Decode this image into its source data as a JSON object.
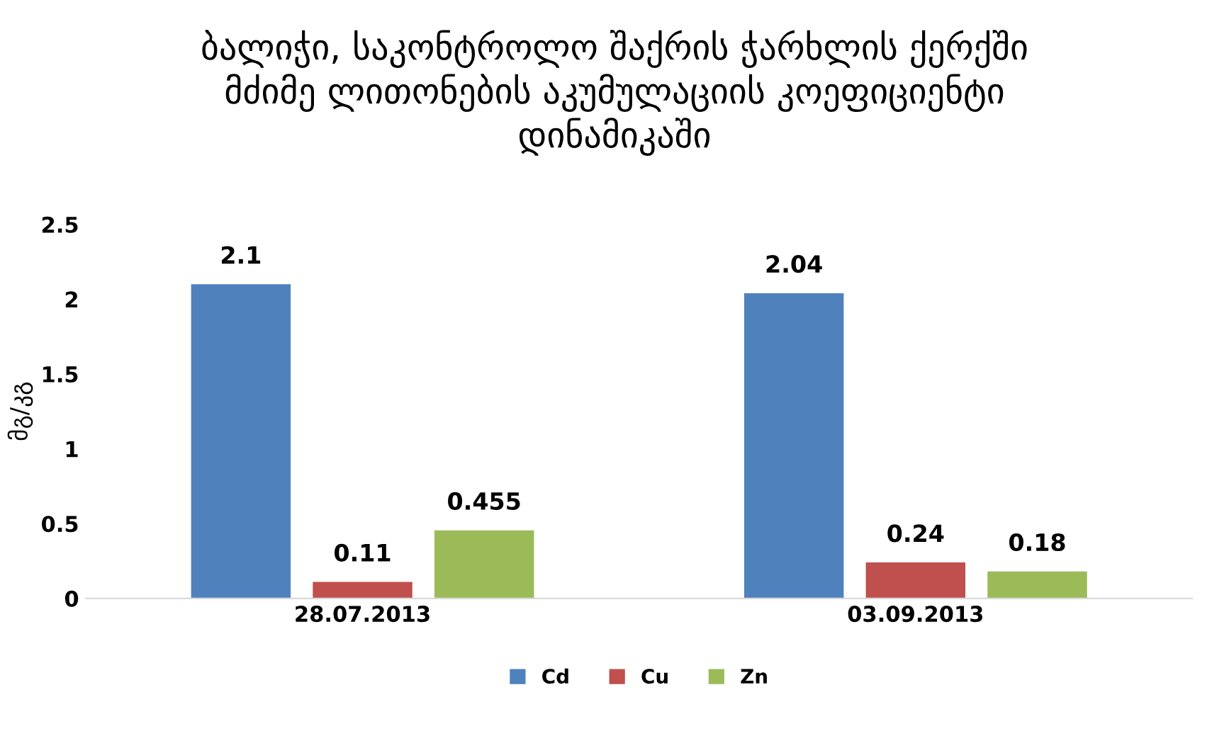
{
  "chart_data": {
    "type": "bar",
    "title": "ბალიჭი, საკონტროლო შაქრის ჭარხლის ქერქში\nმძიმე ლითონების აკუმულაციის კოეფიციენტი\nდინამიკაში",
    "ylabel": "მგ/კგ",
    "categories": [
      "28.07.2013",
      "03.09.2013"
    ],
    "series": [
      {
        "name": "Cd",
        "color": "#4f81bd",
        "values": [
          2.1,
          2.04
        ]
      },
      {
        "name": "Cu",
        "color": "#c0504d",
        "values": [
          0.11,
          0.24
        ]
      },
      {
        "name": "Zn",
        "color": "#9bbb59",
        "values": [
          0.455,
          0.18
        ]
      }
    ],
    "ylim": [
      0,
      2.5
    ],
    "yticks": [
      0,
      0.5,
      1,
      1.5,
      2,
      2.5
    ],
    "grid": false,
    "legend": "bottom",
    "data_labels": true
  }
}
